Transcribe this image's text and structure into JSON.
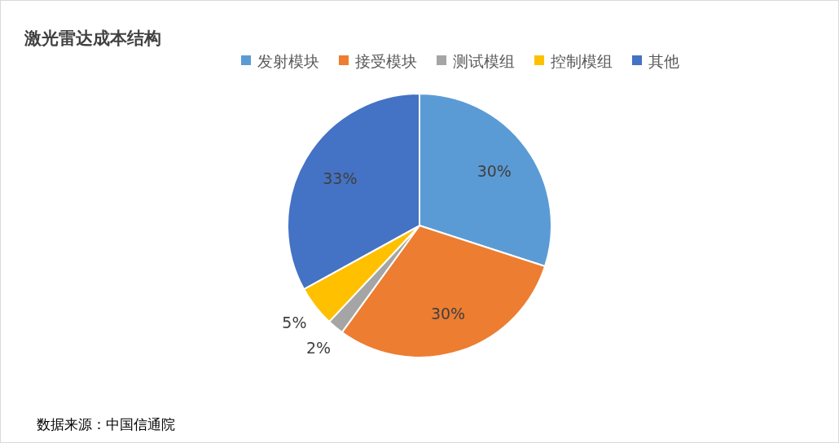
{
  "chart_data": {
    "type": "pie",
    "title": "激光雷达成本结构",
    "categories": [
      "发射模块",
      "接受模块",
      "测试模组",
      "控制模组",
      "其他"
    ],
    "values": [
      30,
      30,
      2,
      5,
      33
    ],
    "colors": [
      "#5b9bd5",
      "#ed7d31",
      "#a5a5a5",
      "#ffc000",
      "#4472c4"
    ],
    "value_labels": [
      "30%",
      "30%",
      "2%",
      "5%",
      "33%"
    ],
    "legend": "top",
    "annotations": [
      "数据来源：中国信通院"
    ]
  }
}
